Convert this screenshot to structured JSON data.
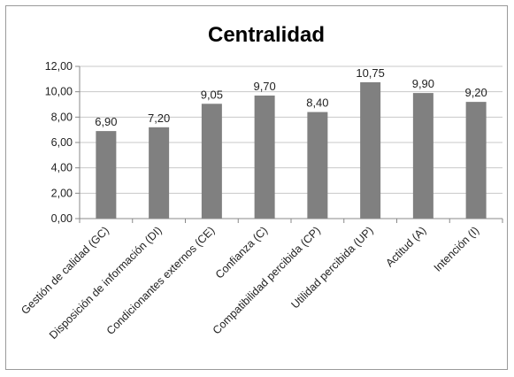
{
  "chart_data": {
    "type": "bar",
    "title": "Centralidad",
    "xlabel": "",
    "ylabel": "",
    "categories": [
      "Gestión de calidad (GC)",
      "Disposición de información (DI)",
      "Condicionantes externos (CE)",
      "Confianza (C)",
      "Compatibilidad percibida (CP)",
      "Utilidad percibida (UP)",
      "Actitud (A)",
      "Intención (I)"
    ],
    "values": [
      6.9,
      7.2,
      9.05,
      9.7,
      8.4,
      10.75,
      9.9,
      9.2
    ],
    "value_labels": [
      "6,90",
      "7,20",
      "9,05",
      "9,70",
      "8,40",
      "10,75",
      "9,90",
      "9,20"
    ],
    "ylim": [
      0,
      12
    ],
    "yticks": [
      "0,00",
      "2,00",
      "4,00",
      "6,00",
      "8,00",
      "10,00",
      "12,00"
    ],
    "grid": true,
    "legend": "none",
    "colors": {
      "bar": "#808080",
      "grid": "#c8c8c8",
      "axis": "#888888"
    }
  }
}
